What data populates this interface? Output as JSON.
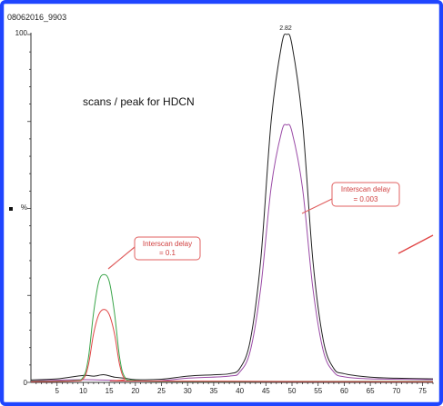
{
  "header": {
    "sample_id": "08062016_9903"
  },
  "annotations": {
    "main_label": "scans / peak for HDCN",
    "callout_left": {
      "line1": "Interscan delay",
      "line2": "= 0.1"
    },
    "callout_right": {
      "line1": "Interscan delay",
      "line2": "= 0.003"
    },
    "peak_label": "2.82"
  },
  "colors": {
    "frame": "#1f45ff",
    "black_trace": "#222222",
    "purple_trace": "#9a4aa6",
    "green_trace": "#3aa54a",
    "red_trace": "#e04545",
    "callout_border": "#e06060",
    "callout_text": "#d04040"
  },
  "chart_data": {
    "type": "line",
    "title": "",
    "xlabel": "",
    "ylabel": "%",
    "xlim": [
      0,
      77
    ],
    "ylim": [
      0,
      100
    ],
    "y_tick_labels": [
      "0",
      "100"
    ],
    "x_ticks": [
      5,
      10,
      15,
      20,
      25,
      30,
      35,
      40,
      45,
      50,
      55,
      60,
      65,
      70,
      75
    ],
    "series": [
      {
        "color": "#222222",
        "points": [
          [
            0,
            0.7
          ],
          [
            5,
            1.0
          ],
          [
            10,
            2.0
          ],
          [
            12,
            1.8
          ],
          [
            14,
            2.2
          ],
          [
            16,
            1.5
          ],
          [
            18,
            1.2
          ],
          [
            20,
            0.8
          ],
          [
            25,
            0.9
          ],
          [
            30,
            1.8
          ],
          [
            35,
            2.2
          ],
          [
            38,
            2.5
          ],
          [
            40,
            4
          ],
          [
            42,
            12
          ],
          [
            44,
            35
          ],
          [
            46,
            75
          ],
          [
            48,
            97
          ],
          [
            49,
            100
          ],
          [
            50,
            97
          ],
          [
            52,
            75
          ],
          [
            54,
            35
          ],
          [
            56,
            12
          ],
          [
            58,
            4
          ],
          [
            60,
            2.5
          ],
          [
            65,
            1.5
          ],
          [
            70,
            1.2
          ],
          [
            77,
            1.0
          ]
        ]
      },
      {
        "color": "#9a4aa6",
        "points": [
          [
            0,
            0.4
          ],
          [
            10,
            0.8
          ],
          [
            20,
            0.4
          ],
          [
            25,
            0.5
          ],
          [
            30,
            1.2
          ],
          [
            38,
            1.8
          ],
          [
            40,
            3
          ],
          [
            42,
            9
          ],
          [
            44,
            27
          ],
          [
            46,
            56
          ],
          [
            48,
            72
          ],
          [
            49,
            74
          ],
          [
            50,
            72
          ],
          [
            52,
            56
          ],
          [
            54,
            27
          ],
          [
            56,
            9
          ],
          [
            58,
            3
          ],
          [
            60,
            1.6
          ],
          [
            65,
            1.0
          ],
          [
            77,
            0.8
          ]
        ]
      },
      {
        "color": "#3aa54a",
        "points": [
          [
            0,
            0.3
          ],
          [
            8,
            0.5
          ],
          [
            10,
            1.5
          ],
          [
            11,
            7
          ],
          [
            12,
            20
          ],
          [
            13,
            29
          ],
          [
            14,
            31
          ],
          [
            15,
            29
          ],
          [
            16,
            20
          ],
          [
            17,
            7
          ],
          [
            18,
            1.5
          ],
          [
            20,
            0.5
          ],
          [
            30,
            0.3
          ],
          [
            77,
            0.3
          ]
        ]
      },
      {
        "color": "#e04545",
        "points": [
          [
            0,
            0.2
          ],
          [
            8,
            0.4
          ],
          [
            10,
            1.0
          ],
          [
            11,
            5
          ],
          [
            12,
            14
          ],
          [
            13,
            19.5
          ],
          [
            14,
            21
          ],
          [
            15,
            19.5
          ],
          [
            16,
            14
          ],
          [
            17,
            5
          ],
          [
            18,
            1.0
          ],
          [
            20,
            0.4
          ],
          [
            77,
            0.2
          ]
        ]
      }
    ]
  }
}
